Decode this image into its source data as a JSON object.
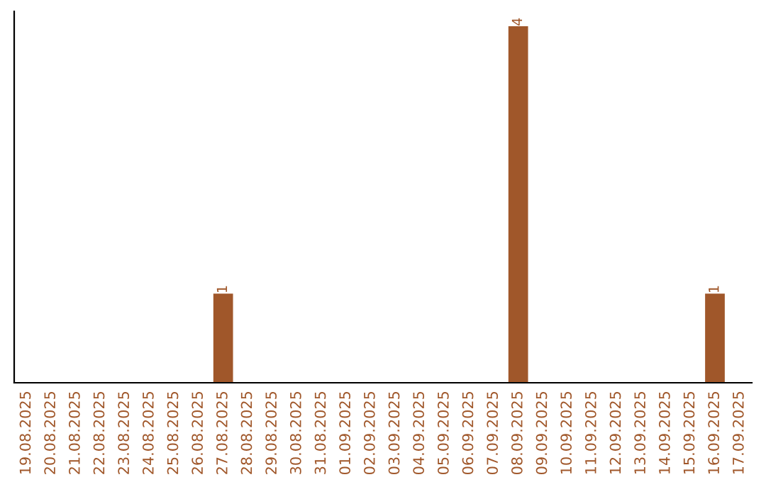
{
  "chart_data": {
    "type": "bar",
    "categories": [
      "19.08.2025",
      "20.08.2025",
      "21.08.2025",
      "22.08.2025",
      "23.08.2025",
      "24.08.2025",
      "25.08.2025",
      "26.08.2025",
      "27.08.2025",
      "28.08.2025",
      "29.08.2025",
      "30.08.2025",
      "31.08.2025",
      "01.09.2025",
      "02.09.2025",
      "03.09.2025",
      "04.09.2025",
      "05.09.2025",
      "06.09.2025",
      "07.09.2025",
      "08.09.2025",
      "09.09.2025",
      "10.09.2025",
      "11.09.2025",
      "12.09.2025",
      "13.09.2025",
      "14.09.2025",
      "15.09.2025",
      "16.09.2025",
      "17.09.2025"
    ],
    "values": [
      0,
      0,
      0,
      0,
      0,
      0,
      0,
      0,
      1,
      0,
      0,
      0,
      0,
      0,
      0,
      0,
      0,
      0,
      0,
      0,
      4,
      0,
      0,
      0,
      0,
      0,
      0,
      0,
      1,
      0
    ],
    "value_labels": [
      null,
      null,
      null,
      null,
      null,
      null,
      null,
      null,
      "1",
      null,
      null,
      null,
      null,
      null,
      null,
      null,
      null,
      null,
      null,
      null,
      "4",
      null,
      null,
      null,
      null,
      null,
      null,
      null,
      "1",
      null
    ],
    "color": "#a0572a",
    "tick_labels": "x",
    "grid": false
  }
}
